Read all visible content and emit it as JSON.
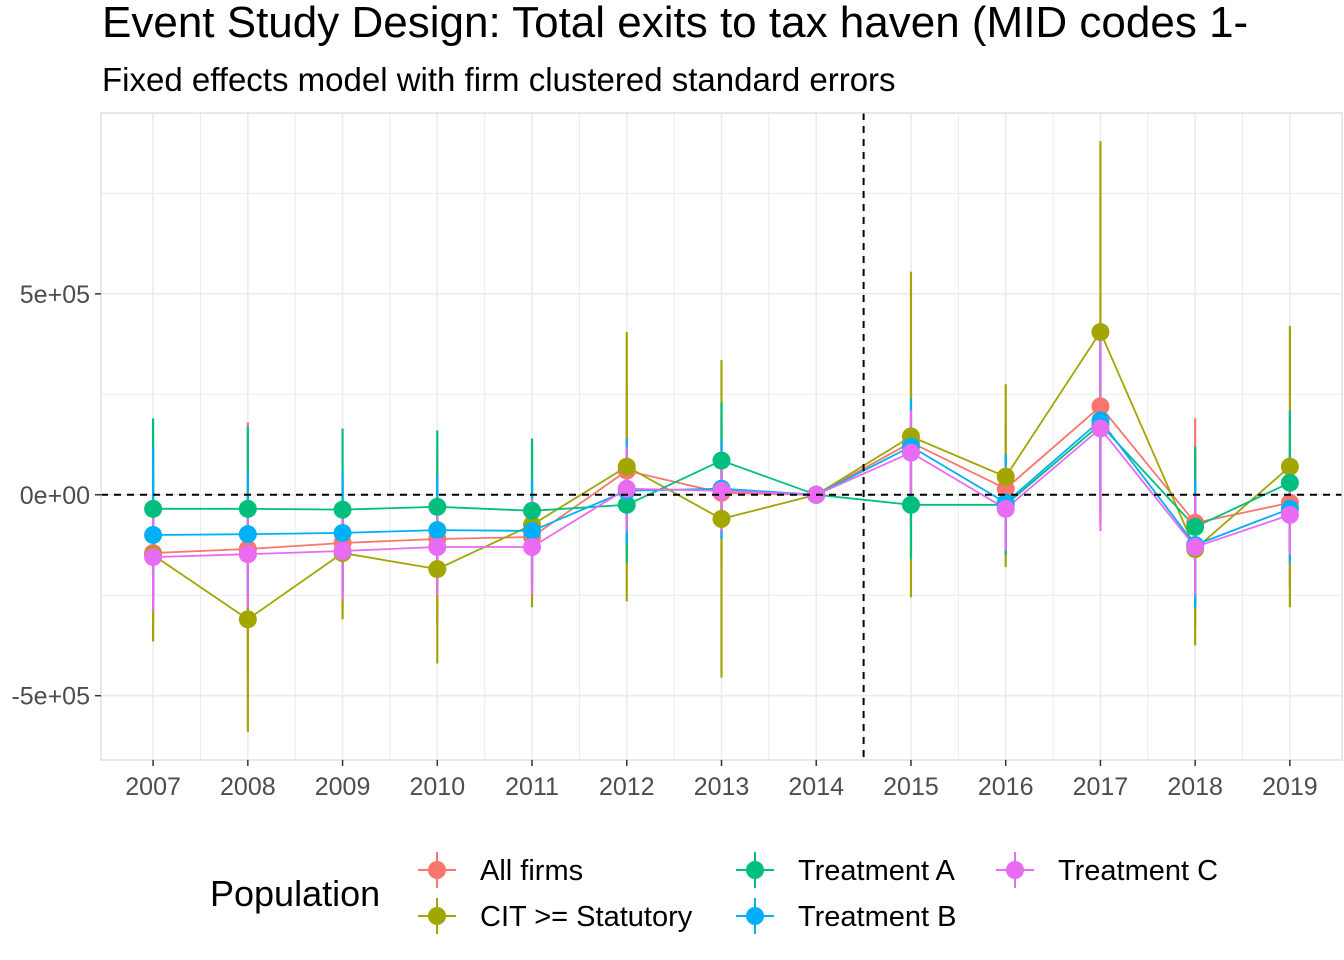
{
  "chart_data": {
    "type": "line",
    "title": "Event Study Design: Total exits to tax haven (MID codes 1-",
    "subtitle": "Fixed effects model with firm clustered standard errors",
    "xlabel": "",
    "ylabel": "",
    "x": [
      2007,
      2008,
      2009,
      2010,
      2011,
      2012,
      2013,
      2014,
      2015,
      2016,
      2017,
      2018,
      2019
    ],
    "y_ticks": [
      -500000,
      0,
      500000
    ],
    "y_tick_labels": [
      "-5e+05",
      "0e+00",
      "5e+05"
    ],
    "ylim": [
      -660000,
      950000
    ],
    "xlim": [
      2006.45,
      2019.55
    ],
    "reference_lines": {
      "vertical_x": 2014.5,
      "horizontal_y": 0,
      "style": "dashed"
    },
    "grid": true,
    "legend": {
      "title": "Population",
      "position": "bottom"
    },
    "series": [
      {
        "name": "All firms",
        "color": "#F8766D",
        "values": [
          -145000,
          -135000,
          -120000,
          -110000,
          -105000,
          60000,
          5000,
          0,
          130000,
          15000,
          220000,
          -70000,
          -20000
        ],
        "ci_low": [
          -330000,
          -450000,
          -280000,
          -320000,
          -250000,
          -150000,
          -180000,
          0,
          -80000,
          -150000,
          0,
          -330000,
          -230000
        ],
        "ci_high": [
          40000,
          180000,
          40000,
          100000,
          40000,
          270000,
          190000,
          0,
          340000,
          180000,
          440000,
          190000,
          190000
        ]
      },
      {
        "name": "CIT >= Statutory",
        "color": "#A3A500",
        "values": [
          -150000,
          -310000,
          -145000,
          -185000,
          -75000,
          70000,
          -60000,
          0,
          145000,
          45000,
          405000,
          -135000,
          70000
        ],
        "ci_low": [
          -365000,
          -590000,
          -310000,
          -420000,
          -280000,
          -265000,
          -455000,
          0,
          -255000,
          -180000,
          -70000,
          -375000,
          -280000
        ],
        "ci_high": [
          65000,
          -30000,
          20000,
          55000,
          140000,
          405000,
          335000,
          0,
          555000,
          275000,
          880000,
          105000,
          420000
        ]
      },
      {
        "name": "Treatment A",
        "color": "#00BF7D",
        "values": [
          -35000,
          -35000,
          -37000,
          -30000,
          -40000,
          -25000,
          85000,
          0,
          -25000,
          -25000,
          175000,
          -80000,
          30000
        ],
        "ci_low": [
          -260000,
          -240000,
          -240000,
          -215000,
          -220000,
          -170000,
          -60000,
          0,
          -160000,
          -150000,
          -40000,
          -280000,
          -150000
        ],
        "ci_high": [
          190000,
          170000,
          165000,
          160000,
          140000,
          120000,
          230000,
          0,
          110000,
          100000,
          390000,
          120000,
          210000
        ]
      },
      {
        "name": "Treatment B",
        "color": "#00B0F6",
        "values": [
          -100000,
          -98000,
          -95000,
          -88000,
          -90000,
          10000,
          15000,
          0,
          120000,
          -20000,
          185000,
          -125000,
          -35000
        ],
        "ci_low": [
          -250000,
          -240000,
          -240000,
          -220000,
          -220000,
          -120000,
          -110000,
          0,
          0,
          -140000,
          0,
          -280000,
          -170000
        ],
        "ci_high": [
          120000,
          60000,
          60000,
          50000,
          40000,
          140000,
          140000,
          0,
          240000,
          100000,
          370000,
          40000,
          100000
        ]
      },
      {
        "name": "Treatment C",
        "color": "#E76BF3",
        "values": [
          -155000,
          -148000,
          -140000,
          -130000,
          -130000,
          15000,
          10000,
          0,
          105000,
          -35000,
          165000,
          -130000,
          -50000
        ],
        "ci_low": [
          -290000,
          -280000,
          -260000,
          -250000,
          -250000,
          -90000,
          -90000,
          0,
          0,
          -140000,
          -90000,
          -250000,
          -150000
        ],
        "ci_high": [
          -30000,
          -20000,
          -20000,
          -10000,
          -10000,
          120000,
          110000,
          0,
          210000,
          70000,
          420000,
          0,
          50000
        ]
      }
    ]
  }
}
